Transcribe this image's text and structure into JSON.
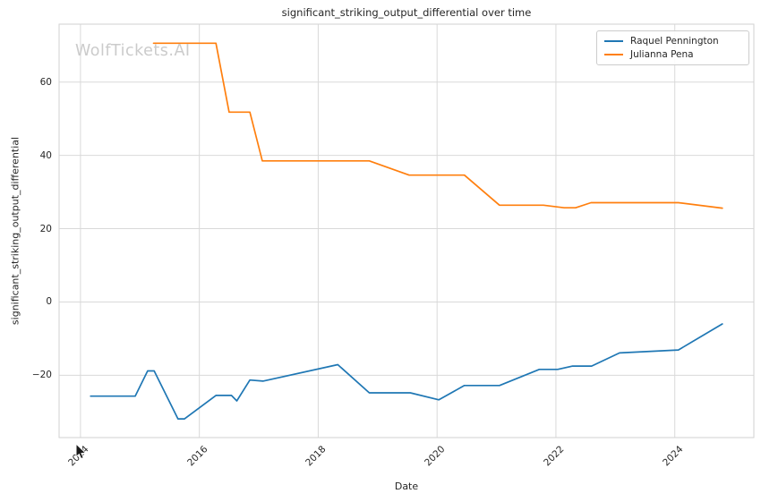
{
  "watermark": "WolfTickets.AI",
  "chart_data": {
    "type": "line",
    "title": "significant_striking_output_differential over time",
    "xlabel": "Date",
    "ylabel": "significant_striking_output_differential",
    "xlim": [
      2013.64,
      2025.33
    ],
    "ylim": [
      -37,
      75.8
    ],
    "x_ticks": [
      2014,
      2016,
      2018,
      2020,
      2022,
      2024
    ],
    "x_tick_labels": [
      "2014",
      "2016",
      "2018",
      "2020",
      "2022",
      "2024"
    ],
    "y_ticks": [
      -20,
      0,
      20,
      40,
      60
    ],
    "y_tick_labels": [
      "−20",
      "0",
      "20",
      "40",
      "60"
    ],
    "grid": true,
    "legend_position": "upper right",
    "series": [
      {
        "name": "Raquel Pennington",
        "slug": "raquel-pennington",
        "color": "#1f77b4",
        "x": [
          2014.17,
          2014.92,
          2015.13,
          2015.24,
          2015.64,
          2015.75,
          2016.28,
          2016.54,
          2016.63,
          2016.85,
          2017.07,
          2018.33,
          2018.86,
          2019.55,
          2020.03,
          2020.46,
          2021.05,
          2021.72,
          2022.03,
          2022.28,
          2022.6,
          2023.07,
          2024.06,
          2024.8
        ],
        "y": [
          -25.7,
          -25.7,
          -18.8,
          -18.8,
          -31.9,
          -31.9,
          -25.5,
          -25.5,
          -27.0,
          -21.3,
          -21.6,
          -17.1,
          -24.8,
          -24.8,
          -26.7,
          -22.8,
          -22.8,
          -18.4,
          -18.4,
          -17.5,
          -17.5,
          -13.9,
          -13.1,
          -6.0
        ]
      },
      {
        "name": "Julianna Pena",
        "slug": "julianna-pena",
        "color": "#ff7f0e",
        "x": [
          2015.23,
          2016.28,
          2016.5,
          2016.85,
          2017.06,
          2018.86,
          2019.53,
          2020.46,
          2021.05,
          2021.79,
          2022.14,
          2022.33,
          2022.59,
          2024.06,
          2024.8
        ],
        "y": [
          70.6,
          70.6,
          51.8,
          51.8,
          38.5,
          38.5,
          34.6,
          34.6,
          26.4,
          26.4,
          25.7,
          25.7,
          27.1,
          27.1,
          25.6
        ]
      }
    ]
  },
  "colors": {
    "grid": "#d9d9d9",
    "frame": "#d2d2d2",
    "text": "#262626",
    "watermark": "#cbcbcb",
    "background": "#ffffff"
  }
}
